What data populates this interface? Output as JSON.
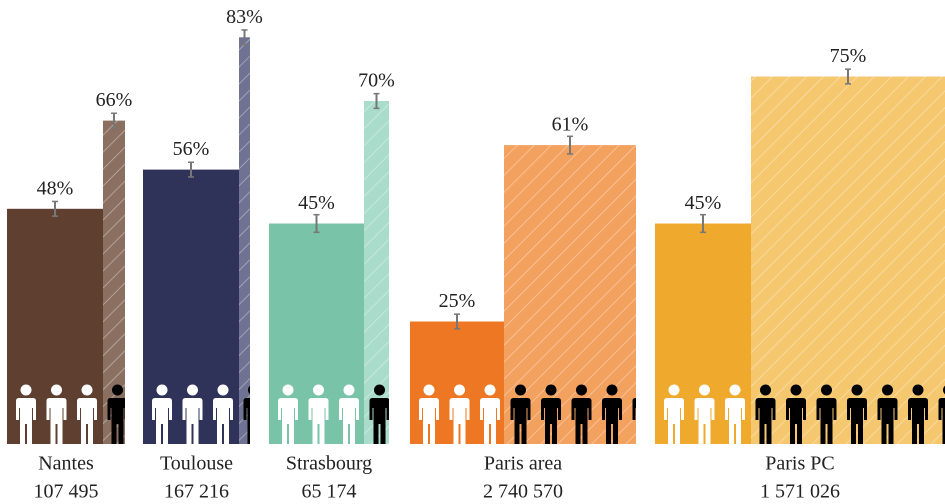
{
  "chart_data": {
    "type": "bar",
    "categories": [
      "Nantes",
      "Toulouse",
      "Strasbourg",
      "Paris area",
      "Paris PC"
    ],
    "sublabels": [
      "107 495",
      "167 216",
      "65 174",
      "2 740 570",
      "1 571 026"
    ],
    "ylim": [
      0,
      90
    ],
    "series": [
      {
        "colors": [
          "#5f4030",
          "#2f335a",
          "#79c3a9",
          "#ee7723",
          "#efaa2d"
        ],
        "values": [
          48,
          56,
          45,
          25,
          45
        ],
        "value_labels": [
          "48%",
          "56%",
          "45%",
          "25%",
          "45%"
        ],
        "errors": [
          1.5,
          1.5,
          1.8,
          1.5,
          1.8
        ]
      },
      {
        "colors": [
          "#8b7062",
          "#6f7292",
          "#a9dccb",
          "#f3a15f",
          "#f5c76f"
        ],
        "hatched": true,
        "values": [
          66,
          83,
          70,
          61,
          75
        ],
        "value_labels": [
          "66%",
          "83%",
          "70%",
          "61%",
          "75%"
        ],
        "errors": [
          1.5,
          1.5,
          1.5,
          1.8,
          1.5
        ]
      }
    ]
  }
}
